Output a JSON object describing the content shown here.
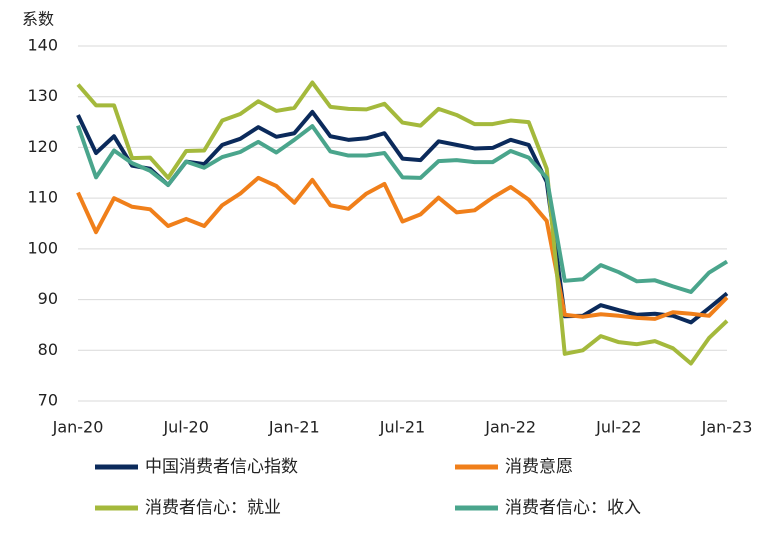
{
  "chart_data": {
    "type": "line",
    "y_label": "系数",
    "categories": [
      "Jan-20",
      null,
      null,
      null,
      null,
      null,
      "Jul-20",
      null,
      null,
      null,
      null,
      null,
      "Jan-21",
      null,
      null,
      null,
      null,
      null,
      "Jul-21",
      null,
      null,
      null,
      null,
      null,
      "Jan-22",
      null,
      null,
      null,
      null,
      null,
      "Jul-22",
      null,
      null,
      null,
      null,
      null,
      "Jan-23"
    ],
    "series": [
      {
        "name": "中国消费者信心指数",
        "color": "#0b2a5b",
        "values": [
          126.4,
          118.9,
          122.2,
          116.4,
          115.8,
          112.6,
          117.2,
          116.7,
          120.5,
          121.7,
          124.0,
          122.1,
          122.8,
          127.0,
          122.2,
          121.5,
          121.8,
          122.8,
          117.8,
          117.5,
          121.2,
          120.5,
          119.8,
          119.9,
          121.5,
          120.5,
          113.2,
          86.7,
          86.8,
          88.9,
          87.9,
          87.0,
          87.2,
          86.8,
          85.5,
          88.3,
          91.2
        ]
      },
      {
        "name": "消费意愿",
        "color": "#f07f1a",
        "values": [
          111.1,
          103.3,
          110.0,
          108.3,
          107.8,
          104.5,
          105.9,
          104.5,
          108.6,
          110.9,
          114.0,
          112.4,
          109.1,
          113.6,
          108.6,
          107.9,
          110.9,
          112.8,
          105.4,
          106.8,
          110.1,
          107.2,
          107.6,
          110.1,
          112.2,
          109.7,
          105.5,
          87.0,
          86.6,
          87.1,
          86.8,
          86.4,
          86.2,
          87.5,
          87.2,
          86.8,
          90.4
        ]
      },
      {
        "name": "消费者信心：就业",
        "color": "#a4b93c",
        "values": [
          132.4,
          128.3,
          128.3,
          117.9,
          118.0,
          114.0,
          119.3,
          119.4,
          125.3,
          126.6,
          129.1,
          127.2,
          127.8,
          132.8,
          128.0,
          127.6,
          127.5,
          128.6,
          124.9,
          124.3,
          127.6,
          126.4,
          124.6,
          124.6,
          125.3,
          125.0,
          115.8,
          79.3,
          80.0,
          82.8,
          81.6,
          81.2,
          81.8,
          80.4,
          77.4,
          82.4,
          85.8
        ]
      },
      {
        "name": "消费者信心：收入",
        "color": "#4aa58c",
        "values": [
          124.3,
          114.1,
          119.4,
          116.9,
          115.4,
          112.6,
          117.2,
          116.0,
          118.1,
          119.1,
          121.1,
          119.0,
          121.5,
          124.2,
          119.2,
          118.4,
          118.4,
          118.9,
          114.1,
          114.0,
          117.3,
          117.5,
          117.1,
          117.1,
          119.3,
          118.0,
          114.0,
          93.7,
          94.0,
          96.8,
          95.4,
          93.6,
          93.8,
          92.6,
          91.5,
          95.3,
          97.5
        ]
      }
    ],
    "ylim": [
      70,
      140
    ],
    "yticks": [
      70,
      80,
      90,
      100,
      110,
      120,
      130,
      140
    ],
    "grid": true
  }
}
